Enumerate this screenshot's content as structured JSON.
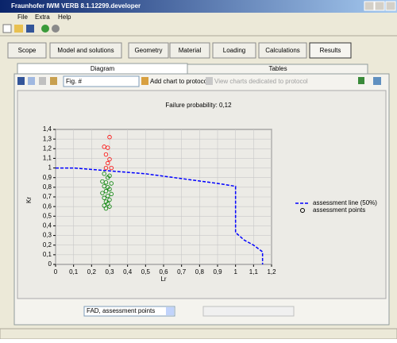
{
  "window": {
    "title": "Fraunhofer IWM VERB 8.1.12299.developer"
  },
  "menu": [
    "File",
    "Extra",
    "Help"
  ],
  "tabs": [
    "Scope",
    "Model and solutions",
    "Geometry",
    "Material",
    "Loading",
    "Calculations",
    "Results"
  ],
  "subtabs": [
    "Diagram",
    "Tables"
  ],
  "toolbar": {
    "figure_field": "Fig. #",
    "add": "Add chart to protocol",
    "view": "View charts dedicated to protocol"
  },
  "selector": "FAD, assessment points",
  "chart_data": {
    "type": "line",
    "title": "Failure probability: 0,12",
    "x_label": "Lr",
    "y_label": "Kr",
    "xlim": [
      0,
      1.2
    ],
    "ylim": [
      0,
      1.4
    ],
    "grid": true,
    "legend": "right",
    "xticks": [
      0,
      {
        "value": 0.1,
        "label": "0,1"
      },
      {
        "value": 0.2,
        "label": "0,2"
      },
      {
        "value": 0.3,
        "label": "0,3"
      },
      {
        "value": 0.4,
        "label": "0,4"
      },
      {
        "value": 0.5,
        "label": "0,5"
      },
      {
        "value": 0.6,
        "label": "0,6"
      },
      {
        "value": 0.7,
        "label": "0,7"
      },
      {
        "value": 0.8,
        "label": "0,8"
      },
      {
        "value": 0.9,
        "label": "0,9"
      },
      1,
      {
        "value": 1.1,
        "label": "1,1"
      },
      {
        "value": 1.2,
        "label": "1,2"
      }
    ],
    "yticks": [
      0,
      {
        "value": 0.1,
        "label": "0,1"
      },
      {
        "value": 0.2,
        "label": "0,2"
      },
      {
        "value": 0.3,
        "label": "0,3"
      },
      {
        "value": 0.4,
        "label": "0,4"
      },
      {
        "value": 0.5,
        "label": "0,5"
      },
      {
        "value": 0.6,
        "label": "0,6"
      },
      {
        "value": 0.7,
        "label": "0,7"
      },
      {
        "value": 0.8,
        "label": "0,8"
      },
      {
        "value": 0.9,
        "label": "0,9"
      },
      1,
      {
        "value": 1.1,
        "label": "1,1"
      },
      {
        "value": 1.2,
        "label": "1,2"
      },
      {
        "value": 1.3,
        "label": "1,3"
      },
      {
        "value": 1.4,
        "label": "1,4"
      }
    ],
    "series": [
      {
        "name": "assessment line (50%)",
        "type": "line",
        "color": "#0000ff",
        "x": [
          0,
          0.1,
          0.3,
          0.5,
          0.7,
          0.9,
          1.0,
          1.0,
          1.05,
          1.1,
          1.15,
          1.15
        ],
        "values": [
          1.0,
          1.0,
          0.97,
          0.94,
          0.89,
          0.84,
          0.81,
          0.33,
          0.25,
          0.2,
          0.13,
          0
        ]
      },
      {
        "name": "assessment points",
        "type": "scatter",
        "color": "#000000",
        "point_colors": [
          "#ff0000",
          "#ff0000",
          "#ff0000",
          "#ff0000",
          "#ff0000",
          "#ff0000",
          "#ff0000",
          "#ff0000",
          "#008000",
          "#008000",
          "#008000",
          "#008000",
          "#008000",
          "#008000",
          "#008000",
          "#008000",
          "#008000",
          "#008000",
          "#008000",
          "#008000",
          "#008000",
          "#008000",
          "#008000",
          "#008000",
          "#008000",
          "#008000",
          "#008000",
          "#008000"
        ],
        "x": [
          0.3,
          0.27,
          0.29,
          0.28,
          0.3,
          0.29,
          0.28,
          0.31,
          0.27,
          0.3,
          0.29,
          0.26,
          0.28,
          0.31,
          0.27,
          0.29,
          0.3,
          0.28,
          0.26,
          0.31,
          0.29,
          0.27,
          0.3,
          0.28,
          0.29,
          0.27,
          0.3,
          0.28
        ],
        "values": [
          1.32,
          1.22,
          1.21,
          1.14,
          1.09,
          1.05,
          1.0,
          1.0,
          0.94,
          0.92,
          0.9,
          0.86,
          0.85,
          0.84,
          0.81,
          0.8,
          0.78,
          0.76,
          0.74,
          0.73,
          0.71,
          0.69,
          0.67,
          0.65,
          0.63,
          0.61,
          0.6,
          0.58
        ]
      }
    ]
  }
}
